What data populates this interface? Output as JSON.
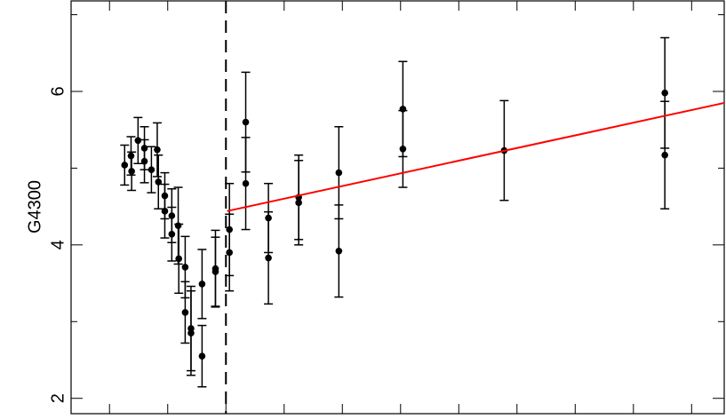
{
  "chart_data": {
    "type": "scatter",
    "y_label": "G4300",
    "xlim": [
      0.34,
      11.56
    ],
    "xticks": [
      1,
      2,
      3,
      4,
      5,
      6,
      7,
      8,
      9,
      10,
      11
    ],
    "ylim": [
      1.8,
      7.18
    ],
    "yticks": [
      2,
      4,
      6
    ],
    "yminor": [
      3,
      5,
      7
    ],
    "vline": 3.0,
    "series": [
      {
        "color": "#000000",
        "x": [
          1.26,
          1.37,
          1.38,
          1.49,
          1.6,
          1.6,
          1.72,
          1.82,
          1.84,
          1.95,
          1.95,
          2.07,
          2.07,
          2.18,
          2.19,
          2.3,
          2.3,
          2.4,
          2.4,
          2.59,
          2.59,
          2.82,
          2.82,
          3.06,
          3.06,
          3.34,
          3.34,
          3.73,
          3.73,
          4.25,
          4.25,
          4.94,
          4.94,
          6.04,
          6.04,
          7.78,
          10.54,
          10.54
        ],
        "values": [
          5.04,
          5.16,
          4.96,
          5.36,
          5.26,
          5.09,
          4.98,
          5.24,
          4.82,
          4.64,
          4.44,
          4.38,
          4.14,
          4.25,
          3.82,
          3.71,
          3.12,
          2.91,
          2.85,
          3.49,
          2.55,
          3.69,
          3.65,
          4.2,
          3.9,
          5.6,
          4.8,
          4.35,
          3.83,
          4.62,
          4.55,
          4.94,
          3.92,
          5.77,
          5.25,
          5.23,
          5.98,
          5.17
        ],
        "errors": [
          0.26,
          0.25,
          0.25,
          0.3,
          0.28,
          0.28,
          0.3,
          0.35,
          0.35,
          0.3,
          0.35,
          0.35,
          0.35,
          0.5,
          0.45,
          0.4,
          0.4,
          0.55,
          0.55,
          0.45,
          0.4,
          0.5,
          0.45,
          0.6,
          0.5,
          0.65,
          0.6,
          0.45,
          0.6,
          0.55,
          0.55,
          0.6,
          0.6,
          0.62,
          0.5,
          0.65,
          0.72,
          0.7
        ]
      }
    ],
    "fit": {
      "color": "#ff0000",
      "x": [
        3.02,
        11.56
      ],
      "y": [
        4.44,
        5.85
      ]
    }
  }
}
